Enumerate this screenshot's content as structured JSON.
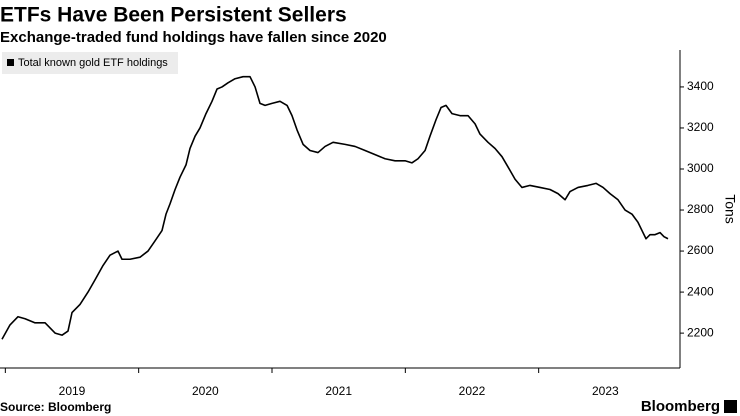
{
  "chart_data": {
    "type": "line",
    "title": "ETFs Have Been Persistent Sellers",
    "subtitle": "Exchange-traded fund holdings have fallen since 2020",
    "y_label": "Tons",
    "source": "Source: Bloomberg",
    "brand": "Bloomberg",
    "series": [
      {
        "name": "Total known gold ETF holdings",
        "color": "#000000",
        "x": [
          2018.975,
          2019.035,
          2019.095,
          2019.148,
          2019.223,
          2019.298,
          2019.373,
          2019.425,
          2019.47,
          2019.5,
          2019.56,
          2019.62,
          2019.673,
          2019.733,
          2019.785,
          2019.845,
          2019.875,
          2019.935,
          2020.01,
          2020.07,
          2020.123,
          2020.175,
          2020.205,
          2020.235,
          2020.273,
          2020.31,
          2020.355,
          2020.385,
          2020.423,
          2020.46,
          2020.505,
          2020.55,
          2020.588,
          2020.625,
          2020.67,
          2020.723,
          2020.783,
          2020.835,
          2020.873,
          2020.91,
          2020.948,
          2021.0,
          2021.06,
          2021.113,
          2021.15,
          2021.188,
          2021.233,
          2021.285,
          2021.345,
          2021.398,
          2021.458,
          2021.548,
          2021.623,
          2021.698,
          2021.773,
          2021.848,
          2021.923,
          2021.998,
          2022.05,
          2022.095,
          2022.148,
          2022.185,
          2022.23,
          2022.268,
          2022.305,
          2022.35,
          2022.41,
          2022.47,
          2022.523,
          2022.56,
          2022.62,
          2022.673,
          2022.725,
          2022.77,
          2022.823,
          2022.875,
          2022.935,
          2023.01,
          2023.085,
          2023.145,
          2023.198,
          2023.235,
          2023.295,
          2023.37,
          2023.43,
          2023.483,
          2023.535,
          2023.595,
          2023.648,
          2023.7,
          2023.745,
          2023.775,
          2023.805,
          2023.835,
          2023.873,
          2023.91,
          2023.94,
          2023.97
        ],
        "values": [
          2170,
          2240,
          2280,
          2270,
          2250,
          2250,
          2200,
          2190,
          2210,
          2300,
          2340,
          2400,
          2460,
          2530,
          2580,
          2600,
          2560,
          2560,
          2570,
          2600,
          2650,
          2700,
          2780,
          2830,
          2900,
          2960,
          3020,
          3100,
          3160,
          3200,
          3270,
          3330,
          3390,
          3400,
          3420,
          3440,
          3450,
          3450,
          3400,
          3320,
          3310,
          3320,
          3330,
          3310,
          3260,
          3190,
          3120,
          3090,
          3080,
          3110,
          3130,
          3120,
          3110,
          3090,
          3070,
          3050,
          3040,
          3040,
          3030,
          3050,
          3090,
          3160,
          3240,
          3300,
          3310,
          3270,
          3260,
          3260,
          3220,
          3170,
          3130,
          3100,
          3060,
          3010,
          2950,
          2910,
          2920,
          2910,
          2900,
          2880,
          2850,
          2890,
          2910,
          2920,
          2930,
          2910,
          2880,
          2850,
          2800,
          2780,
          2740,
          2700,
          2660,
          2680,
          2680,
          2690,
          2670,
          2660
        ]
      }
    ],
    "xlim": [
      2018.96,
      2024.06
    ],
    "xticks": [
      2019,
      2020,
      2021,
      2022,
      2023
    ],
    "ylim": [
      2030,
      3580
    ],
    "yticks": [
      2200,
      2400,
      2600,
      2800,
      3000,
      3200,
      3400
    ],
    "y_axis_side": "right",
    "grid": false
  }
}
